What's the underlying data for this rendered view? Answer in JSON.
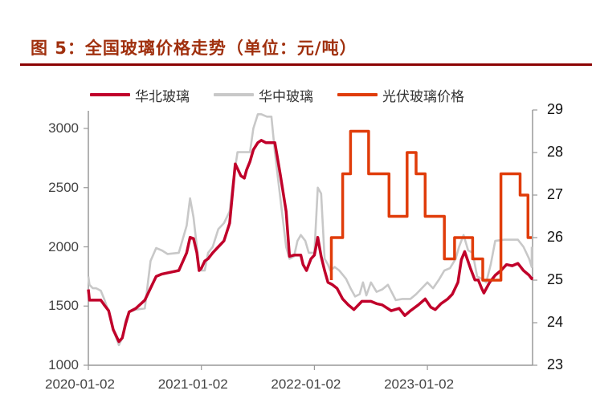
{
  "header": {
    "title": "图 5：全国玻璃价格走势（单位：元/吨）"
  },
  "colors": {
    "title": "#a0300e",
    "rule": "#8b0000",
    "north_china": "#c0002a",
    "central_china": "#c8c8c8",
    "pv_glass": "#e03c0a",
    "axis": "#999999"
  },
  "legend": {
    "items": [
      {
        "label": "华北玻璃",
        "color": "#c0002a"
      },
      {
        "label": "华中玻璃",
        "color": "#c8c8c8"
      },
      {
        "label": "光伏玻璃价格",
        "color": "#e03c0a"
      }
    ]
  },
  "chart_data": {
    "type": "line",
    "title": "图 5：全国玻璃价格走势（单位：元/吨）",
    "xlabel": "",
    "ylabel_left": "元/吨",
    "ylabel_right": "光伏玻璃价格",
    "x_ticks": [
      "2020-01-02",
      "2021-01-02",
      "2022-01-02",
      "2023-01-02"
    ],
    "x_range": [
      "2020-01-02",
      "2023-12-29"
    ],
    "y_left": {
      "ticks": [
        1000,
        1500,
        2000,
        2500,
        3000
      ],
      "range": [
        1000,
        3000
      ]
    },
    "y_right": {
      "ticks": [
        23,
        24,
        25,
        26,
        27,
        28,
        29
      ],
      "range": [
        23,
        29
      ]
    },
    "grid": false,
    "legend_position": "top",
    "series": [
      {
        "name": "华北玻璃",
        "axis": "left",
        "x_year": [
          2020.0,
          2020.01,
          2020.05,
          2020.11,
          2020.14,
          2020.18,
          2020.22,
          2020.27,
          2020.3,
          2020.33,
          2020.36,
          2020.42,
          2020.5,
          2020.6,
          2020.65,
          2020.7,
          2020.8,
          2020.87,
          2020.9,
          2020.93,
          2020.96,
          2020.98,
          2021.0,
          2021.03,
          2021.06,
          2021.1,
          2021.15,
          2021.2,
          2021.25,
          2021.3,
          2021.35,
          2021.38,
          2021.4,
          2021.43,
          2021.46,
          2021.5,
          2021.53,
          2021.57,
          2021.6,
          2021.65,
          2021.7,
          2021.75,
          2021.78,
          2021.82,
          2021.85,
          2021.88,
          2021.9,
          2021.93,
          2021.97,
          2022.0,
          2022.03,
          2022.06,
          2022.09,
          2022.12,
          2022.14,
          2022.16,
          2022.2,
          2022.25,
          2022.3,
          2022.35,
          2022.42,
          2022.5,
          2022.55,
          2022.6,
          2022.68,
          2022.75,
          2022.8,
          2022.85,
          2022.92,
          2022.98,
          2023.03,
          2023.07,
          2023.12,
          2023.18,
          2023.22,
          2023.27,
          2023.3,
          2023.33,
          2023.38,
          2023.42,
          2023.45,
          2023.48,
          2023.5,
          2023.55,
          2023.6,
          2023.65,
          2023.7,
          2023.75,
          2023.8,
          2023.85,
          2023.9,
          2023.95,
          2024.0
        ],
        "values": [
          1640,
          1550,
          1550,
          1550,
          1510,
          1460,
          1300,
          1200,
          1230,
          1350,
          1450,
          1480,
          1550,
          1750,
          1770,
          1780,
          1800,
          1950,
          2080,
          2070,
          1950,
          1800,
          1820,
          1880,
          1900,
          1950,
          2000,
          2050,
          2200,
          2700,
          2600,
          2580,
          2650,
          2720,
          2820,
          2880,
          2900,
          2880,
          2880,
          2880,
          2600,
          2300,
          1920,
          1930,
          1930,
          1930,
          1850,
          1800,
          1900,
          1930,
          2080,
          1920,
          1800,
          1700,
          1690,
          1680,
          1650,
          1560,
          1510,
          1470,
          1540,
          1540,
          1520,
          1510,
          1460,
          1480,
          1420,
          1460,
          1510,
          1560,
          1490,
          1470,
          1520,
          1560,
          1600,
          1700,
          1890,
          1960,
          1820,
          1720,
          1720,
          1650,
          1610,
          1700,
          1760,
          1800,
          1850,
          1840,
          1860,
          1800,
          1760,
          1730,
          1745
        ]
      },
      {
        "name": "华中玻璃",
        "axis": "left",
        "x_year": [
          2020.0,
          2020.01,
          2020.04,
          2020.07,
          2020.11,
          2020.14,
          2020.18,
          2020.22,
          2020.27,
          2020.3,
          2020.33,
          2020.36,
          2020.42,
          2020.5,
          2020.55,
          2020.6,
          2020.65,
          2020.7,
          2020.8,
          2020.87,
          2020.9,
          2020.93,
          2020.96,
          2020.98,
          2021.0,
          2021.03,
          2021.06,
          2021.1,
          2021.15,
          2021.2,
          2021.25,
          2021.28,
          2021.32,
          2021.38,
          2021.43,
          2021.46,
          2021.5,
          2021.53,
          2021.58,
          2021.62,
          2021.65,
          2021.7,
          2021.75,
          2021.78,
          2021.82,
          2021.85,
          2021.88,
          2021.92,
          2021.95,
          2022.0,
          2022.03,
          2022.06,
          2022.09,
          2022.12,
          2022.14,
          2022.18,
          2022.22,
          2022.28,
          2022.32,
          2022.36,
          2022.4,
          2022.43,
          2022.46,
          2022.5,
          2022.55,
          2022.6,
          2022.65,
          2022.72,
          2022.78,
          2022.85,
          2022.9,
          2022.95,
          2023.0,
          2023.05,
          2023.1,
          2023.15,
          2023.2,
          2023.25,
          2023.28,
          2023.32,
          2023.36,
          2023.4,
          2023.44,
          2023.48,
          2023.52,
          2023.56,
          2023.6,
          2023.68,
          2023.75,
          2023.8,
          2023.85,
          2023.9,
          2023.95,
          2024.0
        ],
        "values": [
          1750,
          1680,
          1650,
          1650,
          1630,
          1560,
          1450,
          1300,
          1170,
          1230,
          1380,
          1450,
          1470,
          1480,
          1880,
          1990,
          1970,
          1940,
          1950,
          2180,
          2410,
          2250,
          2000,
          1820,
          1800,
          1800,
          1950,
          2000,
          2150,
          2200,
          2300,
          2550,
          2800,
          2800,
          2800,
          3000,
          3120,
          3120,
          3100,
          3100,
          2800,
          2400,
          2000,
          1900,
          1920,
          2050,
          2100,
          2050,
          1950,
          1950,
          2500,
          2450,
          1900,
          1850,
          1800,
          1830,
          1800,
          1730,
          1650,
          1580,
          1600,
          1700,
          1590,
          1700,
          1620,
          1640,
          1680,
          1550,
          1560,
          1560,
          1600,
          1650,
          1700,
          1650,
          1720,
          1800,
          1820,
          1900,
          2000,
          2100,
          1970,
          1950,
          1750,
          1730,
          1700,
          1850,
          2050,
          2060,
          2060,
          2060,
          2000,
          1900,
          1830,
          2000
        ]
      },
      {
        "name": "光伏玻璃价格",
        "axis": "right",
        "type": "step",
        "x_year": [
          2022.15,
          2022.15,
          2022.25,
          2022.25,
          2022.32,
          2022.32,
          2022.48,
          2022.48,
          2022.66,
          2022.66,
          2022.82,
          2022.82,
          2022.9,
          2022.9,
          2022.98,
          2022.98,
          2023.15,
          2023.15,
          2023.24,
          2023.24,
          2023.4,
          2023.4,
          2023.49,
          2023.49,
          2023.65,
          2023.65,
          2023.82,
          2023.82,
          2023.89,
          2023.89,
          2023.96
        ],
        "values": [
          25.0,
          26.0,
          26.0,
          27.5,
          27.5,
          28.5,
          28.5,
          27.5,
          27.5,
          26.5,
          26.5,
          28.0,
          28.0,
          27.5,
          27.5,
          26.5,
          26.5,
          25.5,
          25.5,
          26.0,
          26.0,
          25.5,
          25.5,
          25.0,
          25.0,
          27.5,
          27.5,
          27.0,
          27.0,
          26.0,
          26.0
        ]
      }
    ]
  }
}
